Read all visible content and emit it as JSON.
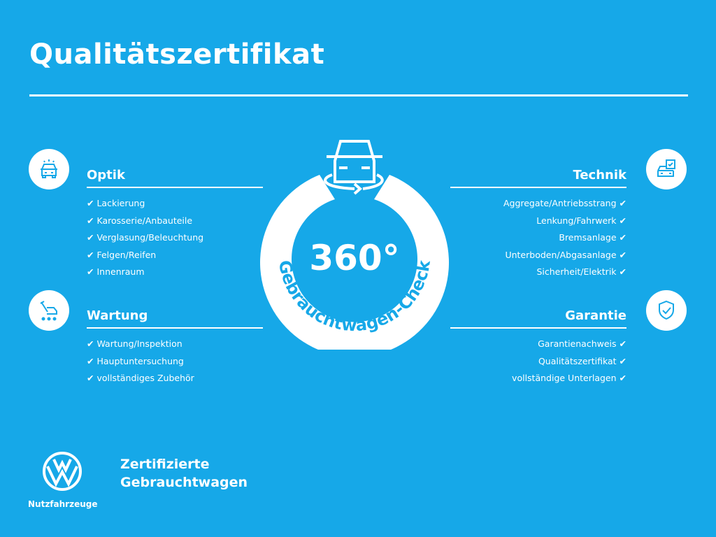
{
  "title": "Qualitätszertifikat",
  "center": {
    "number": "360°",
    "arc_text": "Gebrauchtwagen-Check"
  },
  "sections": {
    "optik": {
      "title": "Optik",
      "icon": "car-light-icon",
      "items": [
        "Lackierung",
        "Karosserie/Anbauteile",
        "Verglasung/Beleuchtung",
        "Felgen/Reifen",
        "Innenraum"
      ]
    },
    "wartung": {
      "title": "Wartung",
      "icon": "service-tools-icon",
      "items": [
        "Wartung/Inspektion",
        "Hauptuntersuchung",
        "vollständiges Zubehör"
      ]
    },
    "technik": {
      "title": "Technik",
      "icon": "car-checklist-icon",
      "items": [
        "Aggregate/Antriebsstrang",
        "Lenkung/Fahrwerk",
        "Bremsanlage",
        "Unterboden/Abgasanlage",
        "Sicherheit/Elektrik"
      ]
    },
    "garantie": {
      "title": "Garantie",
      "icon": "shield-check-icon",
      "items": [
        "Garantienachweis",
        "Qualitätszertifikat",
        "vollständige Unterlagen"
      ]
    }
  },
  "check": "✔",
  "footer": {
    "brand": "Nutzfahrzeuge",
    "tagline_1": "Zertifizierte",
    "tagline_2": "Gebrauchtwagen"
  },
  "colors": {
    "background": "#16a8e8",
    "foreground": "#ffffff"
  }
}
